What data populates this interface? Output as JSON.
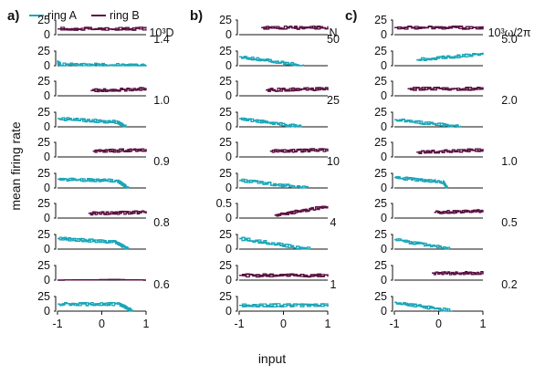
{
  "colors": {
    "ring_a": "#1ba6b8",
    "ring_b": "#5a1142",
    "axis": "#111111"
  },
  "legend": [
    {
      "name": "ring A",
      "color": "#1ba6b8"
    },
    {
      "name": "ring B",
      "color": "#5a1142"
    }
  ],
  "ylabel": "mean firing rate",
  "xlabel": "input",
  "panels": [
    {
      "letter": "a)",
      "param_label": "10³D",
      "param_values": [
        "1.4",
        "1.0",
        "0.9",
        "0.8",
        "0.6"
      ]
    },
    {
      "letter": "b)",
      "param_label": "N",
      "param_values": [
        "50",
        "25",
        "10",
        "4",
        "1"
      ]
    },
    {
      "letter": "c)",
      "param_label": "10³ω/2π",
      "param_values": [
        "5.0",
        "2.0",
        "1.0",
        "0.5",
        "0.2"
      ]
    }
  ],
  "x_ticks": [
    "-1",
    "0",
    "1"
  ],
  "chart_data": [
    {
      "type": "line",
      "panel": "a)",
      "parameter": "10³D",
      "xlabel": "input",
      "ylabel": "mean firing rate",
      "xlim": [
        -1,
        1
      ],
      "ylim": [
        0,
        25
      ],
      "x_ticks": [
        -1,
        0,
        1
      ],
      "rows": [
        {
          "param_value": "1.4",
          "ring_b": {
            "y_ticks": [
              0,
              25
            ],
            "x": [
              -1,
              1
            ],
            "level": [
              10,
              10
            ]
          },
          "ring_a": {
            "y_ticks": [
              0,
              25
            ],
            "x": [
              -1,
              -0.93,
              0.5,
              1
            ],
            "level": [
              6,
              2,
              1,
              0
            ]
          }
        },
        {
          "param_value": "1.0",
          "ring_b": {
            "y_ticks": [
              0,
              25
            ],
            "x": [
              -0.25,
              1
            ],
            "level": [
              9,
              12
            ]
          },
          "ring_a": {
            "y_ticks": [
              0,
              25
            ],
            "x": [
              -1,
              0.35,
              0.55
            ],
            "level": [
              14,
              8,
              0
            ]
          }
        },
        {
          "param_value": "0.9",
          "ring_b": {
            "y_ticks": [
              0,
              25
            ],
            "x": [
              -0.2,
              1
            ],
            "level": [
              10,
              12
            ]
          },
          "ring_a": {
            "y_ticks": [
              0,
              25
            ],
            "x": [
              -1,
              0.35,
              0.6
            ],
            "level": [
              15,
              12,
              0
            ]
          }
        },
        {
          "param_value": "0.8",
          "ring_b": {
            "y_ticks": [
              0,
              25
            ],
            "x": [
              -0.3,
              1
            ],
            "level": [
              8,
              10
            ]
          },
          "ring_a": {
            "y_ticks": [
              0,
              25
            ],
            "x": [
              -1,
              0.3,
              0.6
            ],
            "level": [
              18,
              12,
              0
            ]
          }
        },
        {
          "param_value": "0.6",
          "ring_b": {
            "y_ticks": [
              0,
              25
            ],
            "x": [
              -1,
              0.3,
              1
            ],
            "level": [
              0,
              1,
              0
            ]
          },
          "ring_a": {
            "y_ticks": [
              0,
              25
            ],
            "x": [
              -1,
              0.4,
              0.7
            ],
            "level": [
              12,
              12,
              0
            ]
          }
        }
      ]
    },
    {
      "type": "line",
      "panel": "b)",
      "parameter": "N",
      "xlabel": "input",
      "ylabel": "mean firing rate",
      "xlim": [
        -1,
        1
      ],
      "ylim": [
        0,
        25
      ],
      "x_ticks": [
        -1,
        0,
        1
      ],
      "rows": [
        {
          "param_value": "50",
          "ring_b": {
            "y_ticks": [
              0,
              25
            ],
            "x": [
              -0.5,
              1
            ],
            "level": [
              12,
              12
            ]
          },
          "ring_a": {
            "y_ticks": [
              0,
              25
            ],
            "x": [
              -1,
              0.45
            ],
            "level": [
              15,
              0
            ]
          }
        },
        {
          "param_value": "25",
          "ring_b": {
            "y_ticks": [
              0,
              25
            ],
            "x": [
              -0.4,
              1
            ],
            "level": [
              10,
              12
            ]
          },
          "ring_a": {
            "y_ticks": [
              0,
              25
            ],
            "x": [
              -1,
              0.4
            ],
            "level": [
              14,
              0
            ]
          }
        },
        {
          "param_value": "10",
          "ring_b": {
            "y_ticks": [
              0,
              25
            ],
            "x": [
              -0.3,
              1
            ],
            "level": [
              10,
              12
            ]
          },
          "ring_a": {
            "y_ticks": [
              0,
              25
            ],
            "x": [
              -1,
              0.55
            ],
            "level": [
              13,
              0
            ]
          }
        },
        {
          "param_value": "4",
          "ring_b": {
            "y_ticks": [
              0,
              0.5
            ],
            "x": [
              -0.2,
              1
            ],
            "level": [
              0.1,
              0.4
            ]
          },
          "ring_a": {
            "y_ticks": [
              0,
              25
            ],
            "x": [
              -1,
              0.6
            ],
            "level": [
              18,
              0
            ]
          }
        },
        {
          "param_value": "1",
          "ring_b": {
            "y_ticks": [
              0,
              25
            ],
            "x": [
              -1,
              1
            ],
            "level": [
              8,
              8
            ]
          },
          "ring_a": {
            "y_ticks": [
              0,
              25
            ],
            "x": [
              -1,
              1
            ],
            "level": [
              10,
              10
            ]
          }
        }
      ]
    },
    {
      "type": "line",
      "panel": "c)",
      "parameter": "10³ω/2π",
      "xlabel": "input",
      "ylabel": "mean firing rate",
      "xlim": [
        -1,
        1
      ],
      "ylim": [
        0,
        25
      ],
      "x_ticks": [
        -1,
        0,
        1
      ],
      "rows": [
        {
          "param_value": "5.0",
          "ring_b": {
            "y_ticks": [
              0,
              25
            ],
            "x": [
              -1,
              1
            ],
            "level": [
              12,
              12
            ]
          },
          "ring_a": {
            "y_ticks": [
              0,
              25
            ],
            "x": [
              -0.5,
              1
            ],
            "level": [
              10,
              20
            ]
          }
        },
        {
          "param_value": "2.0",
          "ring_b": {
            "y_ticks": [
              0,
              25
            ],
            "x": [
              -0.7,
              1
            ],
            "level": [
              12,
              12
            ]
          },
          "ring_a": {
            "y_ticks": [
              0,
              25
            ],
            "x": [
              -1,
              0.5
            ],
            "level": [
              12,
              0
            ]
          }
        },
        {
          "param_value": "1.0",
          "ring_b": {
            "y_ticks": [
              0,
              25
            ],
            "x": [
              -0.5,
              1
            ],
            "level": [
              8,
              12
            ]
          },
          "ring_a": {
            "y_ticks": [
              0,
              25
            ],
            "x": [
              -1,
              0.1,
              0.2
            ],
            "level": [
              18,
              10,
              0
            ]
          }
        },
        {
          "param_value": "0.5",
          "ring_b": {
            "y_ticks": [
              0,
              25
            ],
            "x": [
              -0.1,
              1
            ],
            "level": [
              10,
              12
            ]
          },
          "ring_a": {
            "y_ticks": [
              0,
              25
            ],
            "x": [
              -1,
              0.25
            ],
            "level": [
              16,
              0
            ]
          }
        },
        {
          "param_value": "0.2",
          "ring_b": {
            "y_ticks": [
              0,
              25
            ],
            "x": [
              -0.15,
              1
            ],
            "level": [
              12,
              12
            ]
          },
          "ring_a": {
            "y_ticks": [
              0,
              25
            ],
            "x": [
              -1,
              0.3
            ],
            "level": [
              15,
              0
            ]
          }
        }
      ]
    }
  ]
}
